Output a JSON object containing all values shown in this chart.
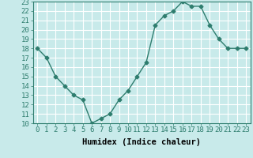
{
  "x": [
    0,
    1,
    2,
    3,
    4,
    5,
    6,
    7,
    8,
    9,
    10,
    11,
    12,
    13,
    14,
    15,
    16,
    17,
    18,
    19,
    20,
    21,
    22,
    23
  ],
  "y": [
    18,
    17,
    15,
    14,
    13,
    12.5,
    10,
    10.5,
    11,
    12.5,
    13.5,
    15,
    16.5,
    20.5,
    21.5,
    22,
    23,
    22.5,
    22.5,
    20.5,
    19,
    18,
    18,
    18
  ],
  "xlabel": "Humidex (Indice chaleur)",
  "xlim": [
    -0.5,
    23.5
  ],
  "ylim": [
    10,
    23
  ],
  "yticks": [
    10,
    11,
    12,
    13,
    14,
    15,
    16,
    17,
    18,
    19,
    20,
    21,
    22,
    23
  ],
  "xticks": [
    0,
    1,
    2,
    3,
    4,
    5,
    6,
    7,
    8,
    9,
    10,
    11,
    12,
    13,
    14,
    15,
    16,
    17,
    18,
    19,
    20,
    21,
    22,
    23
  ],
  "line_color": "#2e7d6e",
  "marker": "D",
  "marker_size": 2.5,
  "bg_color": "#c8eaea",
  "grid_color": "#ffffff",
  "tick_label_fontsize": 6.5,
  "xlabel_fontsize": 7.5,
  "line_width": 1.0
}
